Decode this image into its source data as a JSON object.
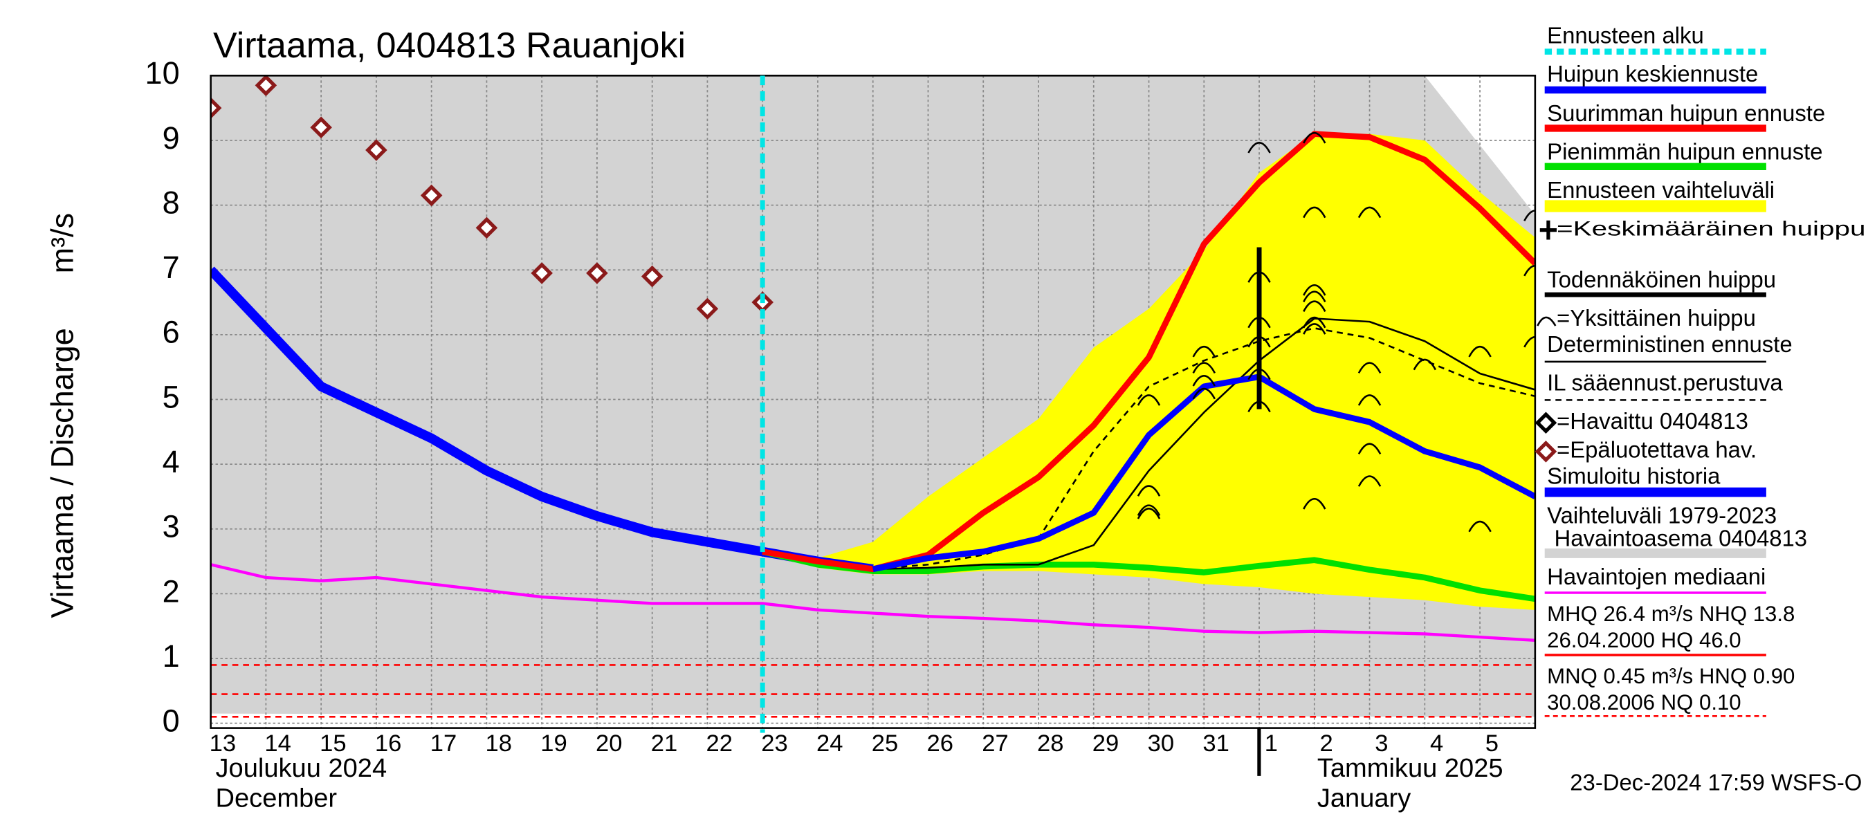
{
  "chart_data": {
    "type": "line",
    "title": "Virtaama, 0404813 Rauanjoki",
    "y_label": "Virtaama / Discharge",
    "y_unit": "m³/s",
    "ylim": [
      0,
      10
    ],
    "yticks": [
      0,
      1,
      2,
      3,
      4,
      5,
      6,
      7,
      8,
      9,
      10
    ],
    "xlim": [
      0,
      24
    ],
    "xticks": [
      {
        "value": 0,
        "label": "13"
      },
      {
        "value": 1,
        "label": "14"
      },
      {
        "value": 2,
        "label": "15"
      },
      {
        "value": 3,
        "label": "16"
      },
      {
        "value": 4,
        "label": "17"
      },
      {
        "value": 5,
        "label": "18"
      },
      {
        "value": 6,
        "label": "19"
      },
      {
        "value": 7,
        "label": "20"
      },
      {
        "value": 8,
        "label": "21"
      },
      {
        "value": 9,
        "label": "22"
      },
      {
        "value": 10,
        "label": "23"
      },
      {
        "value": 11,
        "label": "24"
      },
      {
        "value": 12,
        "label": "25"
      },
      {
        "value": 13,
        "label": "26"
      },
      {
        "value": 14,
        "label": "27"
      },
      {
        "value": 15,
        "label": "28"
      },
      {
        "value": 16,
        "label": "29"
      },
      {
        "value": 17,
        "label": "30"
      },
      {
        "value": 18,
        "label": "31"
      },
      {
        "value": 19,
        "label": "1"
      },
      {
        "value": 20,
        "label": "2"
      },
      {
        "value": 21,
        "label": "3"
      },
      {
        "value": 22,
        "label": "4"
      },
      {
        "value": 23,
        "label": "5"
      }
    ],
    "x_month_labels": [
      "Joulukuu  2024",
      "December",
      "Tammikuu  2025",
      "January"
    ],
    "grid": true,
    "ranges": [
      {
        "name": "Vaihteluväli 1979-2023",
        "subname": "Havaintoasema 0404813",
        "color": "#d3d3d3",
        "x": [
          0,
          22,
          24
        ],
        "upper": [
          10,
          10,
          7.85
        ],
        "lower": [
          0.15,
          0.1,
          0.1
        ]
      },
      {
        "name": "Ennusteen vaihteluväli",
        "color": "#ffff00",
        "x": [
          11,
          12,
          13,
          14,
          15,
          16,
          17,
          18,
          19,
          20,
          21,
          22,
          23,
          24
        ],
        "upper": [
          2.55,
          2.8,
          3.5,
          4.1,
          4.7,
          5.8,
          6.4,
          7.3,
          8.5,
          9.1,
          9.1,
          9.0,
          8.2,
          7.5
        ],
        "lower": [
          2.4,
          2.3,
          2.3,
          2.35,
          2.35,
          2.3,
          2.25,
          2.15,
          2.1,
          2.0,
          1.95,
          1.9,
          1.8,
          1.75
        ]
      }
    ],
    "series": [
      {
        "name": "Simuloitu historia",
        "color": "#0000ff",
        "x": [
          0,
          1,
          2,
          3,
          4,
          5,
          6,
          7,
          8,
          9,
          10,
          11,
          12
        ],
        "values": [
          7.0,
          6.1,
          5.2,
          4.8,
          4.4,
          3.9,
          3.5,
          3.2,
          2.95,
          2.8,
          2.65,
          2.5,
          2.38
        ]
      },
      {
        "name": "Huipun keskiennuste",
        "color": "#0000ff",
        "x": [
          12,
          13,
          14,
          15,
          16,
          17,
          18,
          19,
          20,
          21,
          22,
          23,
          24
        ],
        "values": [
          2.38,
          2.55,
          2.65,
          2.85,
          3.25,
          4.45,
          5.2,
          5.35,
          4.85,
          4.65,
          4.2,
          3.95,
          3.5
        ]
      },
      {
        "name": "Suurimman huipun ennuste",
        "color": "#ff0000",
        "x": [
          10,
          11,
          12,
          13,
          14,
          15,
          16,
          17,
          18,
          19,
          20,
          21,
          22,
          23,
          24
        ],
        "values": [
          2.65,
          2.5,
          2.38,
          2.6,
          3.25,
          3.8,
          4.6,
          5.65,
          7.4,
          8.35,
          9.1,
          9.05,
          8.7,
          7.95,
          7.1
        ]
      },
      {
        "name": "Pienimmän huipun ennuste",
        "color": "#00e000",
        "x": [
          10,
          11,
          12,
          13,
          14,
          15,
          16,
          17,
          18,
          19,
          20,
          21,
          22,
          23,
          24
        ],
        "values": [
          2.65,
          2.45,
          2.35,
          2.35,
          2.42,
          2.45,
          2.45,
          2.4,
          2.33,
          2.43,
          2.52,
          2.37,
          2.25,
          2.05,
          1.92
        ]
      },
      {
        "name": "Deterministinen ennuste",
        "color": "#000000",
        "x": [
          10,
          11,
          12,
          13,
          14,
          15,
          16,
          17,
          18,
          19,
          20,
          21,
          22,
          23,
          24
        ],
        "values": [
          2.65,
          2.5,
          2.38,
          2.4,
          2.45,
          2.45,
          2.75,
          3.9,
          4.8,
          5.6,
          6.25,
          6.2,
          5.9,
          5.4,
          5.15
        ]
      },
      {
        "name": "IL sääennust.perustuva",
        "color": "#000000",
        "dashed": true,
        "x": [
          10,
          11,
          12,
          13,
          14,
          15,
          16,
          17,
          18,
          19,
          20,
          21,
          22,
          23,
          24
        ],
        "values": [
          2.65,
          2.5,
          2.38,
          2.45,
          2.6,
          2.85,
          4.2,
          5.2,
          5.6,
          5.9,
          6.1,
          5.95,
          5.6,
          5.25,
          5.05
        ]
      },
      {
        "name": "Havaintojen mediaani",
        "color": "#ff00ff",
        "x": [
          0,
          1,
          2,
          3,
          4,
          5,
          6,
          7,
          8,
          9,
          10,
          11,
          12,
          13,
          14,
          15,
          16,
          17,
          18,
          19,
          20,
          21,
          22,
          23,
          24
        ],
        "values": [
          2.45,
          2.25,
          2.2,
          2.25,
          2.15,
          2.05,
          1.95,
          1.9,
          1.85,
          1.85,
          1.85,
          1.75,
          1.7,
          1.65,
          1.62,
          1.58,
          1.52,
          1.48,
          1.42,
          1.4,
          1.42,
          1.4,
          1.38,
          1.33,
          1.28
        ]
      },
      {
        "name": "=Epäluotettava hav.",
        "color": "#8b1a1a",
        "markers": true,
        "x": [
          0,
          1,
          2,
          3,
          4,
          5,
          6,
          7,
          8,
          9,
          10
        ],
        "values": [
          9.5,
          9.85,
          9.2,
          8.85,
          8.15,
          7.65,
          6.95,
          6.95,
          6.9,
          6.4,
          6.5
        ]
      }
    ],
    "forecast_start": {
      "name": "Ennusteen alku",
      "color": "#00e5e5",
      "x": 10
    },
    "peak_range": {
      "name": "Todennäköinen huippu",
      "color": "#000000",
      "x": 19,
      "low": 4.85,
      "high": 7.35
    },
    "peaks": {
      "name": "=Yksittäinen huippu",
      "color": "#000000",
      "x": [
        17,
        17,
        17,
        17,
        18,
        18,
        18,
        18,
        19,
        19,
        19,
        19,
        19,
        19,
        20,
        20,
        20,
        20,
        20,
        20,
        20,
        20,
        21,
        21,
        21,
        21,
        21,
        22,
        23,
        23,
        24,
        24,
        24
      ],
      "values": [
        5.0,
        3.6,
        3.3,
        3.25,
        5.75,
        5.5,
        5.3,
        5.1,
        8.9,
        6.9,
        6.2,
        5.9,
        5.4,
        4.9,
        9.05,
        7.9,
        6.7,
        6.6,
        6.45,
        6.2,
        6.1,
        3.4,
        7.9,
        5.5,
        5.0,
        4.25,
        3.75,
        5.55,
        5.75,
        3.05,
        7.85,
        7.0,
        5.9
      ]
    },
    "legend_only": [
      {
        "name": "=Keskimääräinen huippu",
        "color": "#000000"
      },
      {
        "name": "=Havaittu 0404813",
        "color": "#000000"
      }
    ],
    "reference_lines": {
      "color": "#ff0000",
      "values": [
        0.9,
        0.45,
        0.1
      ]
    },
    "stats": [
      "MHQ 26.4 m³/s NHQ 13.8",
      "26.04.2000 HQ 46.0",
      "MNQ 0.45 m³/s HNQ 0.90",
      "30.08.2006 NQ 0.10"
    ],
    "footer": "23-Dec-2024 17:59 WSFS-O"
  }
}
